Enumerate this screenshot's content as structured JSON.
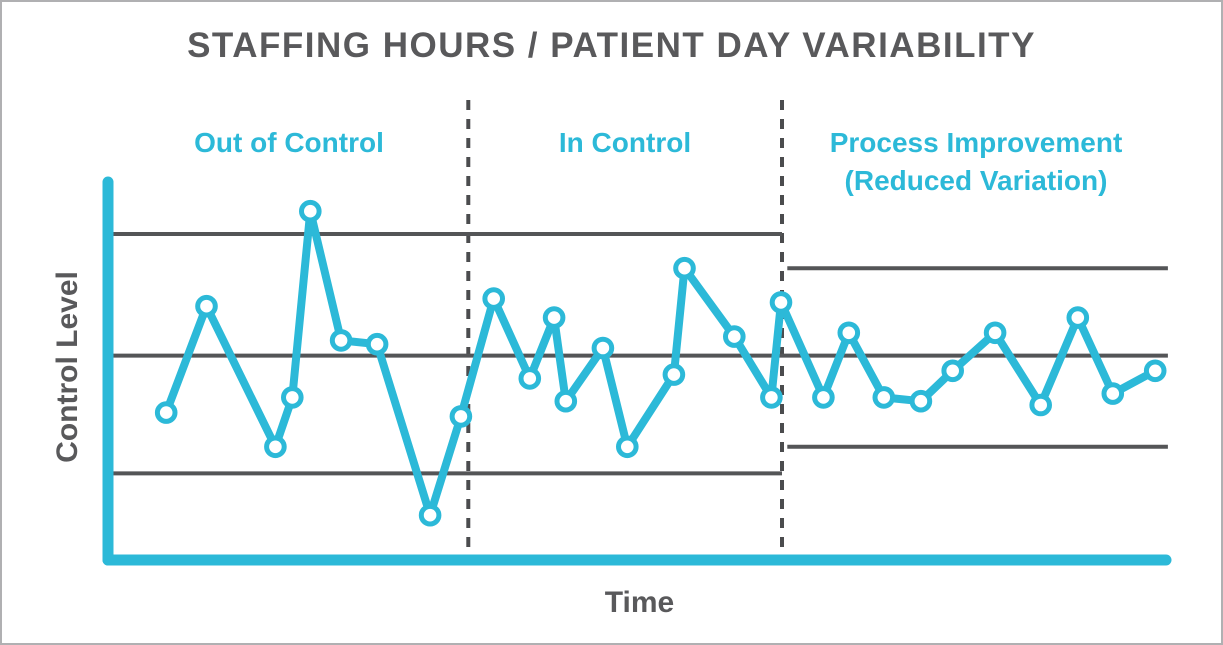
{
  "colors": {
    "background": "#ffffff",
    "border_gray": "#b0b0b2",
    "title_gray": "#59595b",
    "axis_label_gray": "#59595b",
    "control_line_gray": "#545557",
    "separator_gray": "#4b4c4e",
    "cyan": "#2cb9d8",
    "marker_fill": "#ffffff"
  },
  "chart_data": {
    "type": "line",
    "title": "STAFFING HOURS / PATIENT DAY VARIABILITY",
    "xlabel": "Time",
    "ylabel": "Control Level",
    "x_axis": {
      "label": "Time",
      "tick_labels": [],
      "range": [
        0,
        100
      ],
      "note": "no numeric ticks shown; x is relative position along time axis"
    },
    "y_axis": {
      "label": "Control Level",
      "tick_labels": [],
      "range": [
        0,
        100
      ],
      "note": "no numeric ticks shown; y is relative control level"
    },
    "grid": false,
    "legend": false,
    "sections": [
      {
        "id": "out-of-control",
        "label": "Out of Control",
        "label_lines": [
          "Out of Control"
        ],
        "x_start": 0,
        "x_end": 33.8,
        "upper_limit": 85,
        "center_line": 53,
        "lower_limit": 22
      },
      {
        "id": "in-control",
        "label": "In Control",
        "label_lines": [
          "In Control"
        ],
        "x_start": 33.8,
        "x_end": 63.4,
        "upper_limit": 85,
        "center_line": 53,
        "lower_limit": 22
      },
      {
        "id": "process-improvement",
        "label": "Process Improvement (Reduced Variation)",
        "label_lines": [
          "Process Improvement",
          "(Reduced Variation)"
        ],
        "x_start": 63.4,
        "x_end": 100,
        "upper_limit": 76,
        "center_line": 53,
        "lower_limit": 29
      }
    ],
    "control_lines": [
      {
        "name": "upper-control-limit-initial",
        "value": 85,
        "x_start": 0,
        "x_end": 63.4
      },
      {
        "name": "center-line",
        "value": 53,
        "x_start": 0,
        "x_end": 99.8
      },
      {
        "name": "lower-control-limit-initial",
        "value": 22,
        "x_start": 0,
        "x_end": 63.4
      },
      {
        "name": "upper-control-limit-improved",
        "value": 76,
        "x_start": 63.9,
        "x_end": 99.8
      },
      {
        "name": "lower-control-limit-improved",
        "value": 29,
        "x_start": 63.9,
        "x_end": 99.8
      }
    ],
    "series": [
      {
        "name": "Staffing Hours / Patient Day",
        "points": [
          [
            5.3,
            38
          ],
          [
            9.1,
            66
          ],
          [
            15.6,
            29
          ],
          [
            17.2,
            42
          ],
          [
            18.9,
            91
          ],
          [
            21.8,
            57
          ],
          [
            25.2,
            56
          ],
          [
            30.2,
            11
          ],
          [
            33.1,
            37
          ],
          [
            36.2,
            68
          ],
          [
            39.6,
            47
          ],
          [
            41.9,
            63
          ],
          [
            43,
            41
          ],
          [
            46.5,
            55
          ],
          [
            48.8,
            29
          ],
          [
            53.2,
            48
          ],
          [
            54.2,
            76
          ],
          [
            58.9,
            58
          ],
          [
            62.4,
            42
          ],
          [
            63.3,
            67
          ],
          [
            67.3,
            42
          ],
          [
            69.7,
            59
          ],
          [
            73,
            42
          ],
          [
            76.5,
            41
          ],
          [
            79.5,
            49
          ],
          [
            83.5,
            59
          ],
          [
            87.8,
            40
          ],
          [
            91.3,
            63
          ],
          [
            94.6,
            43
          ],
          [
            98.6,
            49
          ]
        ]
      }
    ]
  }
}
